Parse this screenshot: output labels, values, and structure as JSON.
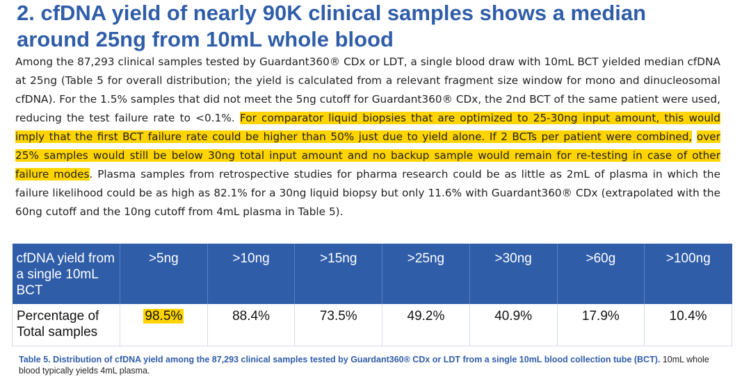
{
  "heading": {
    "line1": "2. cfDNA yield of nearly 90K clinical samples shows a median",
    "line2": "around 25ng from 10mL whole blood"
  },
  "paragraph": {
    "part1": "Among the 87,293 clinical samples tested by Guardant360® CDx or LDT, a single blood draw with 10mL BCT yielded median cfDNA at 25ng (Table 5 for overall distribution; the yield is calculated from a relevant fragment size window for mono and dinucleosomal cfDNA). For the 1.5% samples that did not meet the 5ng cutoff for Guardant360® CDx, the 2nd BCT of the same patient were used, reducing the test failure rate to <0.1%. ",
    "highlight1": "For comparator liquid biopsies that are optimized to 25-30ng input amount, this would imply that the first BCT failure rate could be higher than 50% just due to yield alone. If 2 BCTs per patient were combined,",
    "gap": " ",
    "highlight2": "over 25% samples would still be below 30ng total input amount and no backup sample would remain for re-testing in case of other failure modes",
    "part2": ". Plasma samples from retrospective studies for pharma research could be as little as 2mL of plasma in which the failure likelihood could be as high as 82.1% for a 30ng liquid biopsy but only 11.6% with Guardant360® CDx (extrapolated with the 60ng cutoff and the 10ng cutoff from 4mL plasma in Table 5)."
  },
  "table": {
    "header_label": "cfDNA yield from a single 10mL BCT",
    "row_label": "Percentage of Total samples",
    "columns": [
      {
        "threshold": ">5ng",
        "percentage": "98.5%"
      },
      {
        "threshold": ">10ng",
        "percentage": "88.4%"
      },
      {
        "threshold": ">15ng",
        "percentage": "73.5%"
      },
      {
        "threshold": ">25ng",
        "percentage": "49.2%"
      },
      {
        "threshold": ">30ng",
        "percentage": "40.9%"
      },
      {
        "threshold": ">60g",
        "percentage": "17.9%"
      },
      {
        "threshold": ">100ng",
        "percentage": "10.4%"
      }
    ]
  },
  "caption": {
    "bold": "Table 5. Distribution of cfDNA yield among the 87,293 clinical samples tested by Guardant360® CDx or LDT from a single 10mL blood collection tube (BCT).",
    "plain": " 10mL whole blood typically yields 4mL plasma."
  },
  "colors": {
    "title": "#2f5da8",
    "table_header": "#2f5da8",
    "highlight": "#ffd400"
  }
}
